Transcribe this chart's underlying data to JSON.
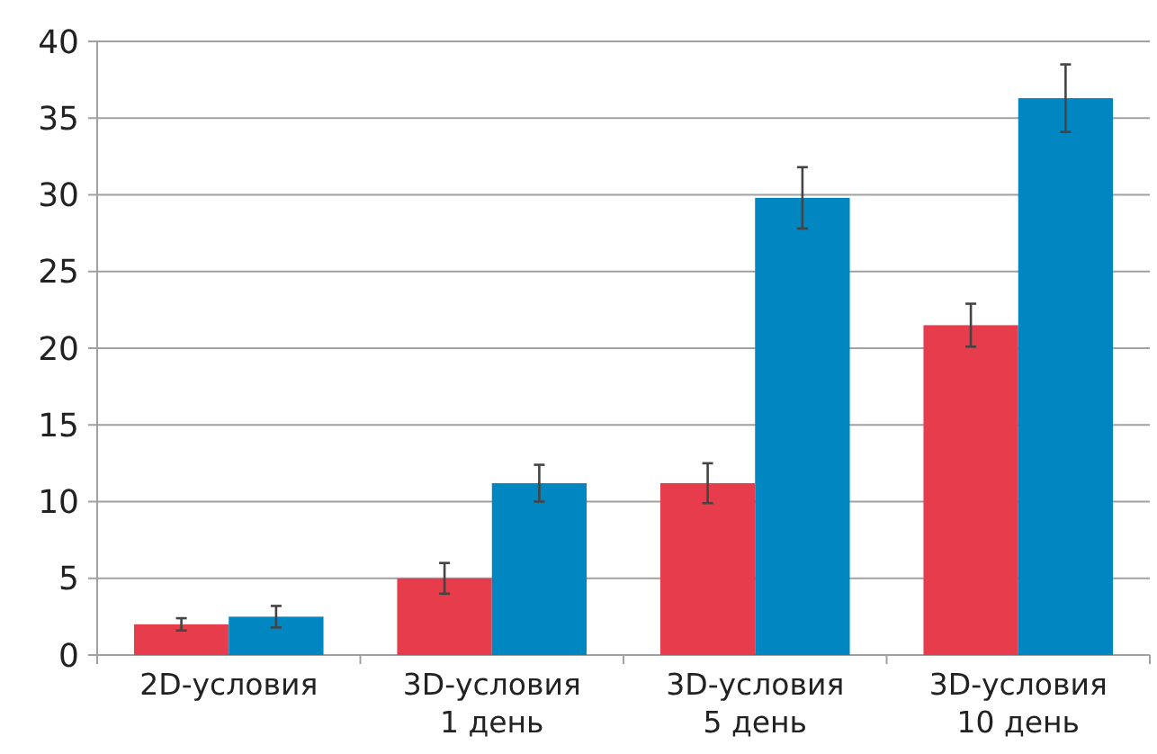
{
  "chart_data": {
    "type": "bar",
    "categories": [
      "2D-условия",
      "3D-условия\n1 день",
      "3D-условия\n5 день",
      "3D-условия\n10 день"
    ],
    "series": [
      {
        "color": "#e63c4b",
        "values": [
          2.0,
          5.0,
          11.2,
          21.5
        ],
        "errors": [
          0.4,
          1.0,
          1.3,
          1.4
        ]
      },
      {
        "color": "#0087c1",
        "values": [
          2.5,
          11.2,
          29.8,
          36.3
        ],
        "errors": [
          0.7,
          1.2,
          2.0,
          2.2
        ]
      }
    ],
    "ylim": [
      0,
      40
    ],
    "yticks": [
      0,
      5,
      10,
      15,
      20,
      25,
      30,
      35,
      40
    ],
    "grid": "y"
  }
}
